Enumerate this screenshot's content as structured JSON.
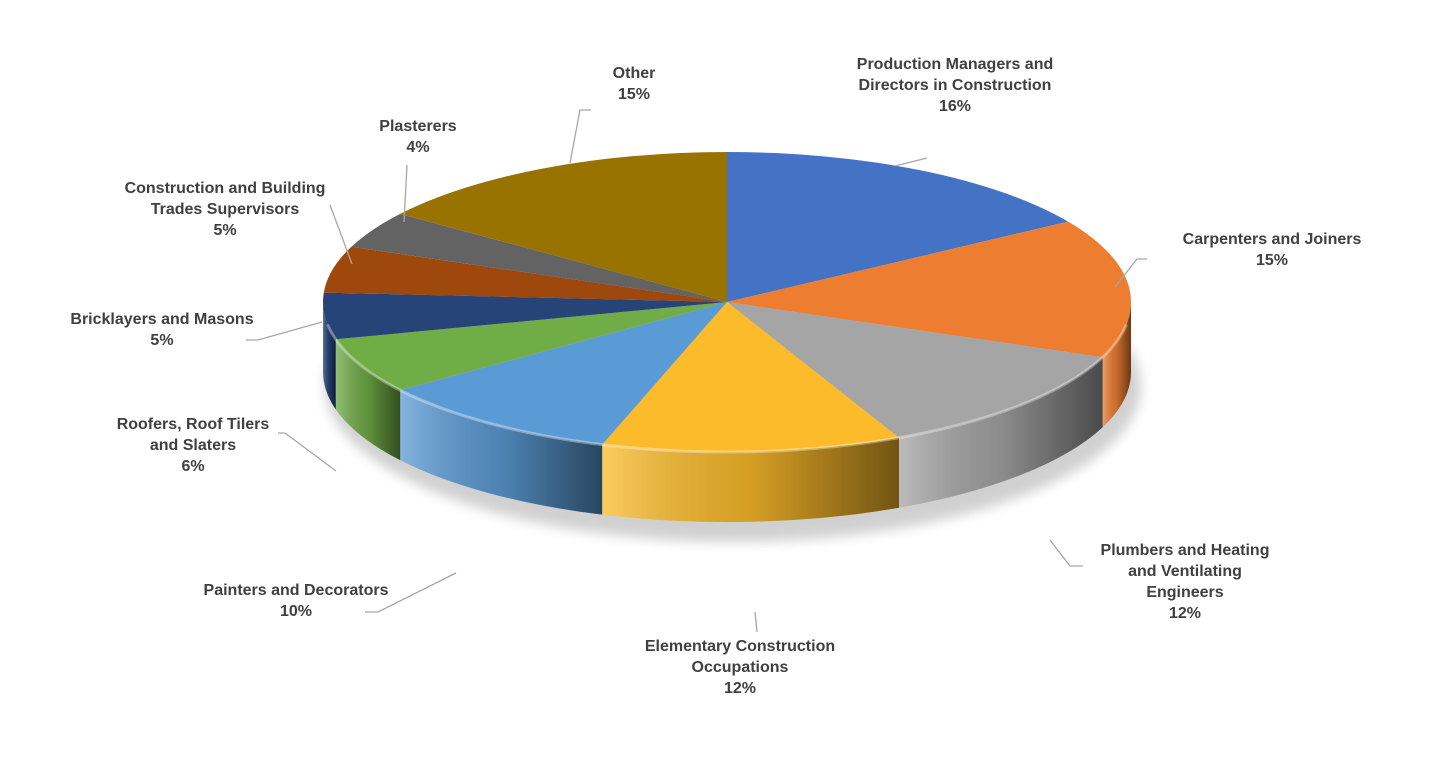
{
  "chart_data": {
    "type": "pie",
    "style": "3d-exploded-tilted",
    "title": "",
    "legend": "none",
    "slices": [
      {
        "name_lines": [
          "Production Managers and",
          "Directors in Construction"
        ],
        "pct_label": "16%",
        "value": 16,
        "color": "#4472c4"
      },
      {
        "name_lines": [
          "Carpenters and Joiners"
        ],
        "pct_label": "15%",
        "value": 15,
        "color": "#ed7d31"
      },
      {
        "name_lines": [
          "Plumbers and Heating",
          "and Ventilating",
          "Engineers"
        ],
        "pct_label": "12%",
        "value": 12,
        "color": "#a5a5a5"
      },
      {
        "name_lines": [
          "Elementary Construction",
          "Occupations"
        ],
        "pct_label": "12%",
        "value": 12,
        "color": "#fbbb2a"
      },
      {
        "name_lines": [
          "Painters and Decorators"
        ],
        "pct_label": "10%",
        "value": 10,
        "color": "#5b9bd5"
      },
      {
        "name_lines": [
          "Roofers, Roof Tilers",
          "and Slaters"
        ],
        "pct_label": "6%",
        "value": 6,
        "color": "#70ad47"
      },
      {
        "name_lines": [
          "Bricklayers and Masons"
        ],
        "pct_label": "5%",
        "value": 5,
        "color": "#264478"
      },
      {
        "name_lines": [
          "Construction and Building",
          "Trades Supervisors"
        ],
        "pct_label": "5%",
        "value": 5,
        "color": "#9e480e"
      },
      {
        "name_lines": [
          "Plasterers"
        ],
        "pct_label": "4%",
        "value": 4,
        "color": "#636363"
      },
      {
        "name_lines": [
          "Other"
        ],
        "pct_label": "15%",
        "value": 15,
        "color": "#997300"
      }
    ]
  }
}
